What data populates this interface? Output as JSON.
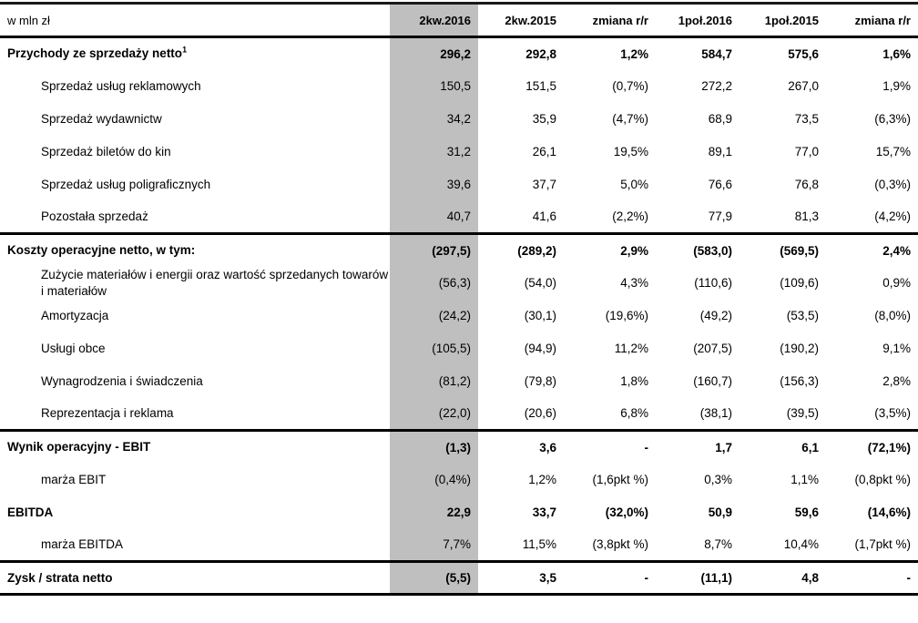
{
  "table": {
    "unit_label": "w mln zł",
    "columns": [
      "2kw.2016",
      "2kw.2015",
      "zmiana r/r",
      "1poł.2016",
      "1poł.2015",
      "zmiana r/r"
    ],
    "colors": {
      "highlight_column_bg": "#bfbfbf",
      "border": "#000000",
      "text": "#000000"
    },
    "rows": [
      {
        "label": "Przychody ze sprzedaży netto",
        "sup": "1",
        "style": "bold",
        "section_end": false,
        "values": [
          "296,2",
          "292,8",
          "1,2%",
          "584,7",
          "575,6",
          "1,6%"
        ]
      },
      {
        "label": "Sprzedaż usług reklamowych",
        "style": "sub",
        "section_end": false,
        "values": [
          "150,5",
          "151,5",
          "(0,7%)",
          "272,2",
          "267,0",
          "1,9%"
        ]
      },
      {
        "label": "Sprzedaż wydawnictw",
        "style": "sub",
        "section_end": false,
        "values": [
          "34,2",
          "35,9",
          "(4,7%)",
          "68,9",
          "73,5",
          "(6,3%)"
        ]
      },
      {
        "label": "Sprzedaż biletów do kin",
        "style": "sub",
        "section_end": false,
        "values": [
          "31,2",
          "26,1",
          "19,5%",
          "89,1",
          "77,0",
          "15,7%"
        ]
      },
      {
        "label": "Sprzedaż usług poligraficznych",
        "style": "sub",
        "section_end": false,
        "values": [
          "39,6",
          "37,7",
          "5,0%",
          "76,6",
          "76,8",
          "(0,3%)"
        ]
      },
      {
        "label": "Pozostała sprzedaż",
        "style": "sub",
        "section_end": true,
        "values": [
          "40,7",
          "41,6",
          "(2,2%)",
          "77,9",
          "81,3",
          "(4,2%)"
        ]
      },
      {
        "label": "Koszty operacyjne netto, w tym:",
        "style": "bold",
        "section_end": false,
        "values": [
          "(297,5)",
          "(289,2)",
          "2,9%",
          "(583,0)",
          "(569,5)",
          "2,4%"
        ]
      },
      {
        "label": "Zużycie materiałów i energii oraz wartość sprzedanych towarów i materiałów",
        "style": "sub",
        "section_end": false,
        "values": [
          "(56,3)",
          "(54,0)",
          "4,3%",
          "(110,6)",
          "(109,6)",
          "0,9%"
        ]
      },
      {
        "label": "Amortyzacja",
        "style": "sub",
        "section_end": false,
        "values": [
          "(24,2)",
          "(30,1)",
          "(19,6%)",
          "(49,2)",
          "(53,5)",
          "(8,0%)"
        ]
      },
      {
        "label": "Usługi obce",
        "style": "sub",
        "section_end": false,
        "values": [
          "(105,5)",
          "(94,9)",
          "11,2%",
          "(207,5)",
          "(190,2)",
          "9,1%"
        ]
      },
      {
        "label": "Wynagrodzenia i świadczenia",
        "style": "sub",
        "section_end": false,
        "values": [
          "(81,2)",
          "(79,8)",
          "1,8%",
          "(160,7)",
          "(156,3)",
          "2,8%"
        ]
      },
      {
        "label": "Reprezentacja i reklama",
        "style": "sub",
        "section_end": true,
        "values": [
          "(22,0)",
          "(20,6)",
          "6,8%",
          "(38,1)",
          "(39,5)",
          "(3,5%)"
        ]
      },
      {
        "label": "Wynik operacyjny - EBIT",
        "style": "bold",
        "section_end": false,
        "values": [
          "(1,3)",
          "3,6",
          "-",
          "1,7",
          "6,1",
          "(72,1%)"
        ]
      },
      {
        "label": "marża EBIT",
        "style": "sub",
        "section_end": false,
        "values": [
          "(0,4%)",
          "1,2%",
          "(1,6pkt %)",
          "0,3%",
          "1,1%",
          "(0,8pkt %)"
        ]
      },
      {
        "label": "EBITDA",
        "style": "bold",
        "section_end": false,
        "values": [
          "22,9",
          "33,7",
          "(32,0%)",
          "50,9",
          "59,6",
          "(14,6%)"
        ]
      },
      {
        "label": "marża EBITDA",
        "style": "sub",
        "section_end": true,
        "values": [
          "7,7%",
          "11,5%",
          "(3,8pkt %)",
          "8,7%",
          "10,4%",
          "(1,7pkt %)"
        ]
      },
      {
        "label": "Zysk / strata netto",
        "style": "bold",
        "section_end": false,
        "values": [
          "(5,5)",
          "3,5",
          "-",
          "(11,1)",
          "4,8",
          "-"
        ]
      }
    ]
  }
}
